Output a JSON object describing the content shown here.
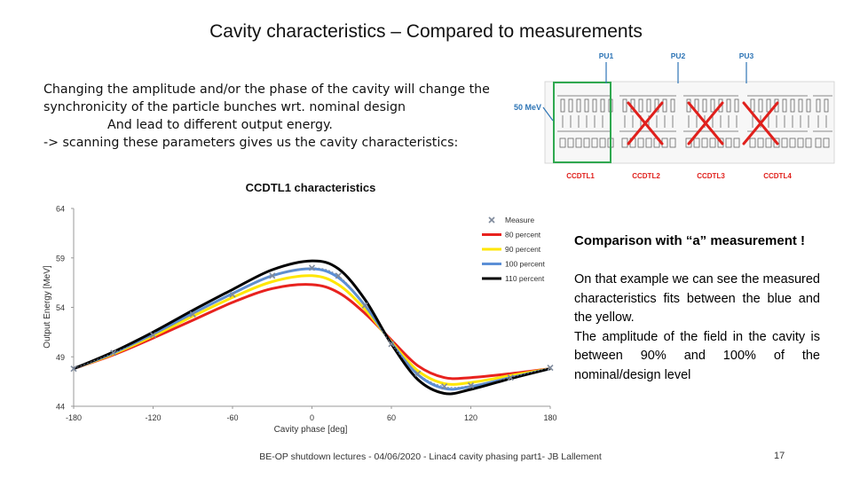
{
  "slide": {
    "title": "Cavity characteristics – Compared to measurements",
    "intro_lines": [
      "Changing the amplitude and/or the phase of the cavity will change the",
      "synchronicity of the particle bunches wrt. nominal design",
      "And lead to different output energy.",
      "-> scanning these parameters gives us the cavity characteristics:"
    ],
    "side_heading": "Comparison with “a” measurement !",
    "side_paragraphs": [
      "On that example we can see the measured characteristics fits between the blue and the yellow.",
      "The amplitude of the field in the cavity is between 90% and 100% of the nominal/design level"
    ],
    "footer": "BE-OP shutdown lectures - 04/06/2020 - Linac4 cavity phasing part1- JB Lallement",
    "page_number": "17"
  },
  "diagram": {
    "energy_label": "50 MeV",
    "pickups": [
      "PU1",
      "PU2",
      "PU3"
    ],
    "modules": [
      "CCDTL1",
      "CCDTL2",
      "CCDTL3",
      "CCDTL4"
    ],
    "colors": {
      "pickup": "#2e75b6",
      "module": "#e0201c",
      "highlight": "#2fa84f"
    }
  },
  "chart_data": {
    "type": "line",
    "title": "CCDTL1 characteristics",
    "xlabel": "Cavity phase [deg]",
    "ylabel": "Output Energy [MeV]",
    "xlim": [
      -180,
      180
    ],
    "ylim": [
      44,
      64
    ],
    "xticks": [
      -180,
      -120,
      -60,
      0,
      60,
      120,
      180
    ],
    "yticks": [
      44,
      49,
      54,
      59,
      64
    ],
    "legend_position": "top-right",
    "grid": false,
    "x": [
      -180,
      -150,
      -120,
      -90,
      -60,
      -30,
      0,
      20,
      40,
      60,
      80,
      100,
      120,
      150,
      180
    ],
    "series": [
      {
        "name": "Measure",
        "style": "markers",
        "color": "#7f8a9c",
        "values": [
          47.8,
          49.4,
          51.2,
          53.3,
          55.3,
          57.2,
          58.0,
          57.2,
          54.2,
          50.3,
          47.3,
          46.0,
          46.1,
          46.9,
          47.9
        ]
      },
      {
        "name": "80 percent",
        "color": "#e8221e",
        "values": [
          47.8,
          49.2,
          50.9,
          52.7,
          54.5,
          55.9,
          56.3,
          55.5,
          53.4,
          50.7,
          48.1,
          46.9,
          46.9,
          47.3,
          47.8
        ]
      },
      {
        "name": "90 percent",
        "color": "#ffe600",
        "values": [
          47.8,
          49.3,
          51.1,
          53.1,
          55.0,
          56.6,
          57.2,
          56.3,
          53.8,
          50.5,
          47.6,
          46.3,
          46.4,
          47.1,
          47.8
        ]
      },
      {
        "name": "100 percent",
        "color": "#5b8fd6",
        "values": [
          47.8,
          49.4,
          51.3,
          53.4,
          55.4,
          57.2,
          57.9,
          57.0,
          54.2,
          50.4,
          47.2,
          45.8,
          46.0,
          46.9,
          47.8
        ]
      },
      {
        "name": "110 percent",
        "color": "#000000",
        "values": [
          47.8,
          49.5,
          51.5,
          53.7,
          55.8,
          57.8,
          58.7,
          57.9,
          54.8,
          50.3,
          46.7,
          45.3,
          45.7,
          46.8,
          47.8
        ]
      }
    ]
  }
}
